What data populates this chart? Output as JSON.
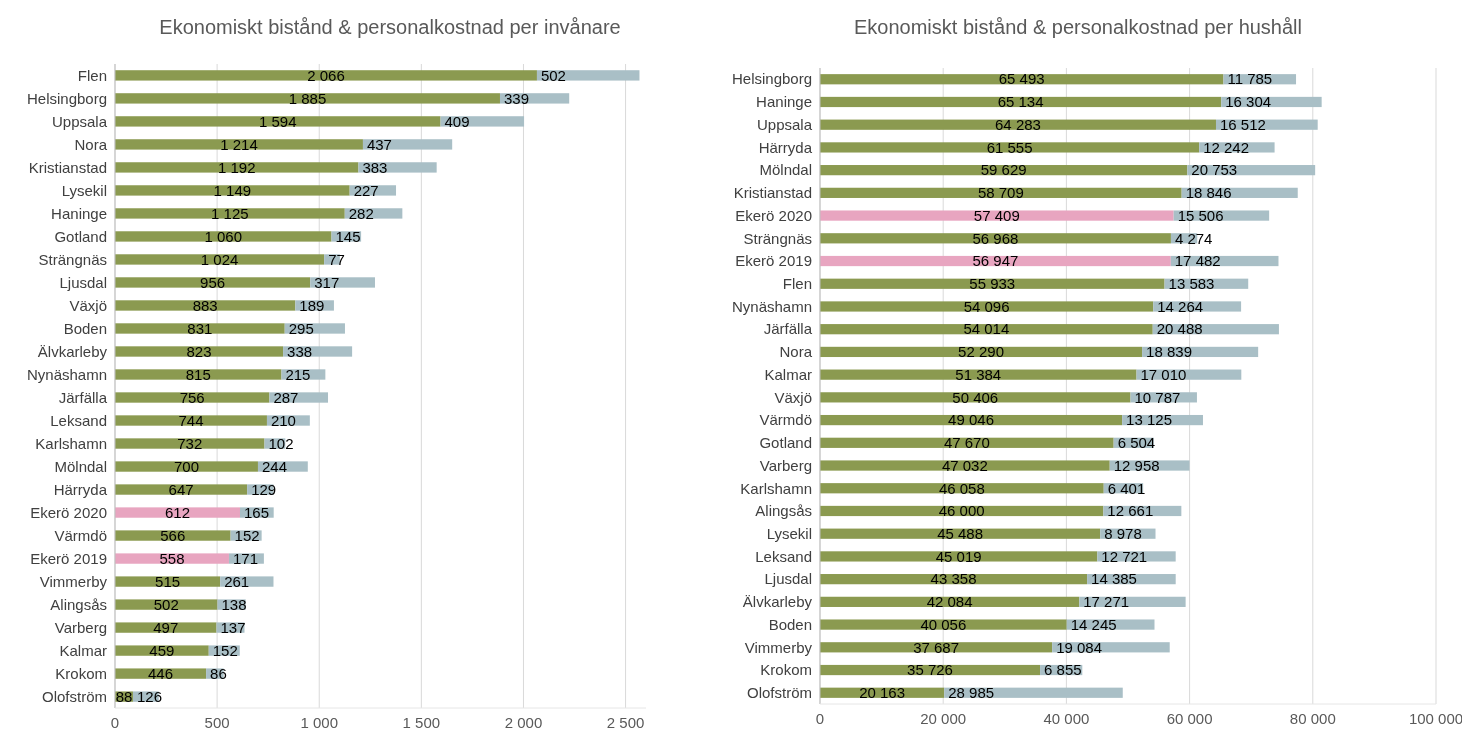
{
  "chart_data": [
    {
      "type": "bar",
      "orientation": "horizontal",
      "stacked": true,
      "title": "Ekonomiskt bistånd & personalkostnad per invånare",
      "categories": [
        "Flen",
        "Helsingborg",
        "Uppsala",
        "Nora",
        "Kristianstad",
        "Lysekil",
        "Haninge",
        "Gotland",
        "Strängnäs",
        "Ljusdal",
        "Växjö",
        "Boden",
        "Älvkarleby",
        "Nynäshamn",
        "Järfälla",
        "Leksand",
        "Karlshamn",
        "Mölndal",
        "Härryda",
        "Ekerö 2020",
        "Värmdö",
        "Ekerö 2019",
        "Vimmerby",
        "Alingsås",
        "Varberg",
        "Kalmar",
        "Krokom",
        "Olofström"
      ],
      "series": [
        {
          "colors": [
            "#8b9a50",
            "#8b9a50",
            "#8b9a50",
            "#8b9a50",
            "#8b9a50",
            "#8b9a50",
            "#8b9a50",
            "#8b9a50",
            "#8b9a50",
            "#8b9a50",
            "#8b9a50",
            "#8b9a50",
            "#8b9a50",
            "#8b9a50",
            "#8b9a50",
            "#8b9a50",
            "#8b9a50",
            "#8b9a50",
            "#8b9a50",
            "#e8a5c0",
            "#8b9a50",
            "#e8a5c0",
            "#8b9a50",
            "#8b9a50",
            "#8b9a50",
            "#8b9a50",
            "#8b9a50",
            "#8b9a50"
          ],
          "values": [
            2066,
            1885,
            1594,
            1214,
            1192,
            1149,
            1125,
            1060,
            1024,
            956,
            883,
            831,
            823,
            815,
            756,
            744,
            732,
            700,
            647,
            612,
            566,
            558,
            515,
            502,
            497,
            459,
            446,
            88
          ],
          "value_labels": [
            "2 066",
            "1 885",
            "1 594",
            "1 214",
            "1 192",
            "1 149",
            "1 125",
            "1 060",
            "1 024",
            "956",
            "883",
            "831",
            "823",
            "815",
            "756",
            "744",
            "732",
            "700",
            "647",
            "612",
            "566",
            "558",
            "515",
            "502",
            "497",
            "459",
            "446",
            "88"
          ]
        },
        {
          "color": "#a9bfc6",
          "values": [
            502,
            339,
            409,
            437,
            383,
            227,
            282,
            145,
            77,
            317,
            189,
            295,
            338,
            215,
            287,
            210,
            102,
            244,
            129,
            165,
            152,
            171,
            261,
            138,
            137,
            152,
            86,
            126
          ],
          "value_labels": [
            "502",
            "339",
            "409",
            "437",
            "383",
            "227",
            "282",
            "145",
            "77",
            "317",
            "189",
            "295",
            "338",
            "215",
            "287",
            "210",
            "102",
            "244",
            "129",
            "165",
            "152",
            "171",
            "261",
            "138",
            "137",
            "152",
            "86",
            "126"
          ]
        }
      ],
      "xlim": [
        0,
        2600
      ],
      "xticks": [
        {
          "value": 0,
          "label": "0"
        },
        {
          "value": 500,
          "label": "500"
        },
        {
          "value": 1000,
          "label": "1 000"
        },
        {
          "value": 1500,
          "label": "1 500"
        },
        {
          "value": 2000,
          "label": "2 000"
        },
        {
          "value": 2500,
          "label": "2 500"
        }
      ],
      "grid": "x"
    },
    {
      "type": "bar",
      "orientation": "horizontal",
      "stacked": true,
      "title": "Ekonomiskt bistånd & personalkostnad per hushåll",
      "categories": [
        "Helsingborg",
        "Haninge",
        "Uppsala",
        "Härryda",
        "Mölndal",
        "Kristianstad",
        "Ekerö 2020",
        "Strängnäs",
        "Ekerö 2019",
        "Flen",
        "Nynäshamn",
        "Järfälla",
        "Nora",
        "Kalmar",
        "Växjö",
        "Värmdö",
        "Gotland",
        "Varberg",
        "Karlshamn",
        "Alingsås",
        "Lysekil",
        "Leksand",
        "Ljusdal",
        "Älvkarleby",
        "Boden",
        "Vimmerby",
        "Krokom",
        "Olofström"
      ],
      "series": [
        {
          "colors": [
            "#8b9a50",
            "#8b9a50",
            "#8b9a50",
            "#8b9a50",
            "#8b9a50",
            "#8b9a50",
            "#e8a5c0",
            "#8b9a50",
            "#e8a5c0",
            "#8b9a50",
            "#8b9a50",
            "#8b9a50",
            "#8b9a50",
            "#8b9a50",
            "#8b9a50",
            "#8b9a50",
            "#8b9a50",
            "#8b9a50",
            "#8b9a50",
            "#8b9a50",
            "#8b9a50",
            "#8b9a50",
            "#8b9a50",
            "#8b9a50",
            "#8b9a50",
            "#8b9a50",
            "#8b9a50",
            "#8b9a50"
          ],
          "values": [
            65493,
            65134,
            64283,
            61555,
            59629,
            58709,
            57409,
            56968,
            56947,
            55933,
            54096,
            54014,
            52290,
            51384,
            50406,
            49046,
            47670,
            47032,
            46058,
            46000,
            45488,
            45019,
            43358,
            42084,
            40056,
            37687,
            35726,
            20163
          ],
          "value_labels": [
            "65 493",
            "65 134",
            "64 283",
            "61 555",
            "59 629",
            "58 709",
            "57 409",
            "56 968",
            "56 947",
            "55 933",
            "54 096",
            "54 014",
            "52 290",
            "51 384",
            "50 406",
            "49 046",
            "47 670",
            "47 032",
            "46 058",
            "46 000",
            "45 488",
            "45 019",
            "43 358",
            "42 084",
            "40 056",
            "37 687",
            "35 726",
            "20 163"
          ]
        },
        {
          "color": "#a9bfc6",
          "values": [
            11785,
            16304,
            16512,
            12242,
            20753,
            18846,
            15506,
            4274,
            17482,
            13583,
            14264,
            20488,
            18839,
            17010,
            10787,
            13125,
            6504,
            12958,
            6401,
            12661,
            8978,
            12721,
            14385,
            17271,
            14245,
            19084,
            6855,
            28985
          ],
          "value_labels": [
            "11 785",
            "16 304",
            "16 512",
            "12 242",
            "20 753",
            "18 846",
            "15 506",
            "4 274",
            "17 482",
            "13 583",
            "14 264",
            "20 488",
            "18 839",
            "17 010",
            "10 787",
            "13 125",
            "6 504",
            "12 958",
            "6 401",
            "12 661",
            "8 978",
            "12 721",
            "14 385",
            "17 271",
            "14 245",
            "19 084",
            "6 855",
            "28 985"
          ]
        }
      ],
      "xlim": [
        0,
        100000
      ],
      "xticks": [
        {
          "value": 0,
          "label": "0"
        },
        {
          "value": 20000,
          "label": "20 000"
        },
        {
          "value": 40000,
          "label": "40 000"
        },
        {
          "value": 60000,
          "label": "60 000"
        },
        {
          "value": 80000,
          "label": "80 000"
        },
        {
          "value": 100000,
          "label": "100 000"
        }
      ],
      "grid": "x"
    }
  ]
}
